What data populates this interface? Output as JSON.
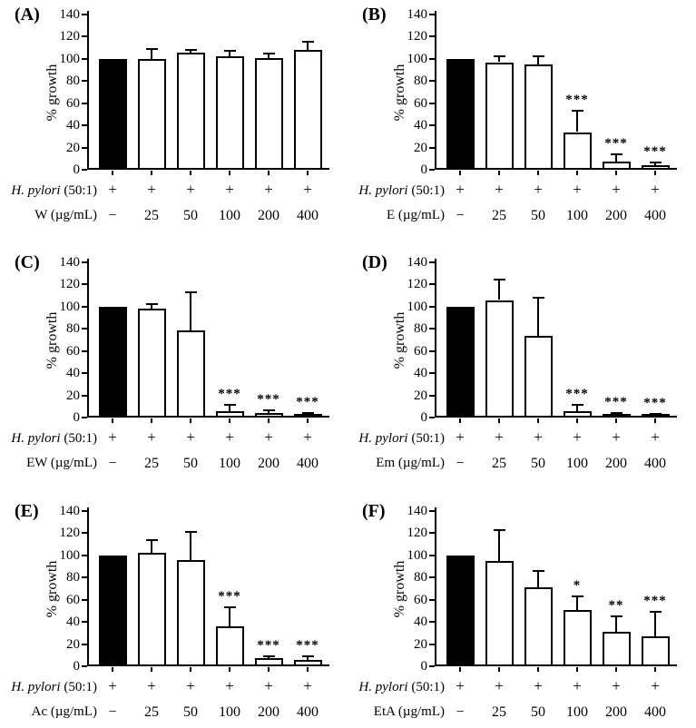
{
  "figure": {
    "bacteria_label": {
      "italic": "H. pylori",
      "normal": " (50:1)"
    },
    "control_symbol": "−",
    "plus_symbol": "+",
    "colors": {
      "control_bar": "#000000",
      "treatment_bar": "#ffffff",
      "axis": "#000000"
    },
    "ylabel": "% growth",
    "ylim": [
      0,
      140
    ],
    "yticks": [
      0,
      20,
      40,
      60,
      80,
      100,
      120,
      140
    ]
  },
  "chart_data": [
    {
      "type": "bar",
      "panel": "(A)",
      "panel_id": "A",
      "ylabel": "% growth",
      "ylim": [
        0,
        140
      ],
      "yticks": [
        0,
        20,
        40,
        60,
        80,
        100,
        120,
        140
      ],
      "treatment_label": "W (µg/mL)",
      "h_pylori_row": [
        "+",
        "+",
        "+",
        "+",
        "+",
        "+"
      ],
      "categories": [
        "−",
        "25",
        "50",
        "100",
        "200",
        "400"
      ],
      "values": [
        100,
        100,
        106,
        102,
        101,
        108
      ],
      "errors": [
        0,
        10,
        3,
        6,
        5,
        8
      ],
      "significance": [
        "",
        "",
        "",
        "",
        "",
        ""
      ],
      "bar_colors": [
        "#000000",
        "#ffffff",
        "#ffffff",
        "#ffffff",
        "#ffffff",
        "#ffffff"
      ]
    },
    {
      "type": "bar",
      "panel": "(B)",
      "panel_id": "B",
      "ylabel": "% growth",
      "ylim": [
        0,
        140
      ],
      "yticks": [
        0,
        20,
        40,
        60,
        80,
        100,
        120,
        140
      ],
      "treatment_label": "E (µg/mL)",
      "h_pylori_row": [
        "+",
        "+",
        "+",
        "+",
        "+",
        "+"
      ],
      "categories": [
        "−",
        "25",
        "50",
        "100",
        "200",
        "400"
      ],
      "values": [
        100,
        97,
        95,
        34,
        7,
        4
      ],
      "errors": [
        0,
        6,
        8,
        20,
        8,
        3
      ],
      "significance": [
        "",
        "",
        "",
        "***",
        "***",
        "***"
      ],
      "bar_colors": [
        "#000000",
        "#ffffff",
        "#ffffff",
        "#ffffff",
        "#ffffff",
        "#ffffff"
      ]
    },
    {
      "type": "bar",
      "panel": "(C)",
      "panel_id": "C",
      "ylabel": "% growth",
      "ylim": [
        0,
        140
      ],
      "yticks": [
        0,
        20,
        40,
        60,
        80,
        100,
        120,
        140
      ],
      "treatment_label": "EW (µg/mL)",
      "h_pylori_row": [
        "+",
        "+",
        "+",
        "+",
        "+",
        "+"
      ],
      "categories": [
        "−",
        "25",
        "50",
        "100",
        "200",
        "400"
      ],
      "values": [
        100,
        98,
        79,
        6,
        4,
        2
      ],
      "errors": [
        0,
        5,
        35,
        6,
        3,
        3
      ],
      "significance": [
        "",
        "",
        "",
        "***",
        "***",
        "***"
      ],
      "bar_colors": [
        "#000000",
        "#ffffff",
        "#ffffff",
        "#ffffff",
        "#ffffff",
        "#ffffff"
      ]
    },
    {
      "type": "bar",
      "panel": "(D)",
      "panel_id": "D",
      "ylabel": "% growth",
      "ylim": [
        0,
        140
      ],
      "yticks": [
        0,
        20,
        40,
        60,
        80,
        100,
        120,
        140
      ],
      "treatment_label": "Em (µg/mL)",
      "h_pylori_row": [
        "+",
        "+",
        "+",
        "+",
        "+",
        "+"
      ],
      "categories": [
        "−",
        "25",
        "50",
        "100",
        "200",
        "400"
      ],
      "values": [
        100,
        106,
        74,
        6,
        3,
        2
      ],
      "errors": [
        0,
        19,
        35,
        6,
        2,
        2
      ],
      "significance": [
        "",
        "",
        "",
        "***",
        "***",
        "***"
      ],
      "bar_colors": [
        "#000000",
        "#ffffff",
        "#ffffff",
        "#ffffff",
        "#ffffff",
        "#ffffff"
      ]
    },
    {
      "type": "bar",
      "panel": "(E)",
      "panel_id": "E",
      "ylabel": "% growth",
      "ylim": [
        0,
        140
      ],
      "yticks": [
        0,
        20,
        40,
        60,
        80,
        100,
        120,
        140
      ],
      "treatment_label": "Ac (µg/mL)",
      "h_pylori_row": [
        "+",
        "+",
        "+",
        "+",
        "+",
        "+"
      ],
      "categories": [
        "−",
        "25",
        "50",
        "100",
        "200",
        "400"
      ],
      "values": [
        100,
        102,
        96,
        36,
        7,
        6
      ],
      "errors": [
        0,
        13,
        26,
        18,
        3,
        4
      ],
      "significance": [
        "",
        "",
        "",
        "***",
        "***",
        "***"
      ],
      "bar_colors": [
        "#000000",
        "#ffffff",
        "#ffffff",
        "#ffffff",
        "#ffffff",
        "#ffffff"
      ]
    },
    {
      "type": "bar",
      "panel": "(F)",
      "panel_id": "F",
      "ylabel": "% growth",
      "ylim": [
        0,
        140
      ],
      "yticks": [
        0,
        20,
        40,
        60,
        80,
        100,
        120,
        140
      ],
      "treatment_label": "EtA (µg/mL)",
      "h_pylori_row": [
        "+",
        "+",
        "+",
        "+",
        "+",
        "+"
      ],
      "categories": [
        "−",
        "25",
        "50",
        "100",
        "200",
        "400"
      ],
      "values": [
        100,
        95,
        71,
        51,
        31,
        27
      ],
      "errors": [
        0,
        29,
        16,
        13,
        15,
        23
      ],
      "significance": [
        "",
        "",
        "",
        "*",
        "**",
        "***"
      ],
      "bar_colors": [
        "#000000",
        "#ffffff",
        "#ffffff",
        "#ffffff",
        "#ffffff",
        "#ffffff"
      ]
    }
  ]
}
